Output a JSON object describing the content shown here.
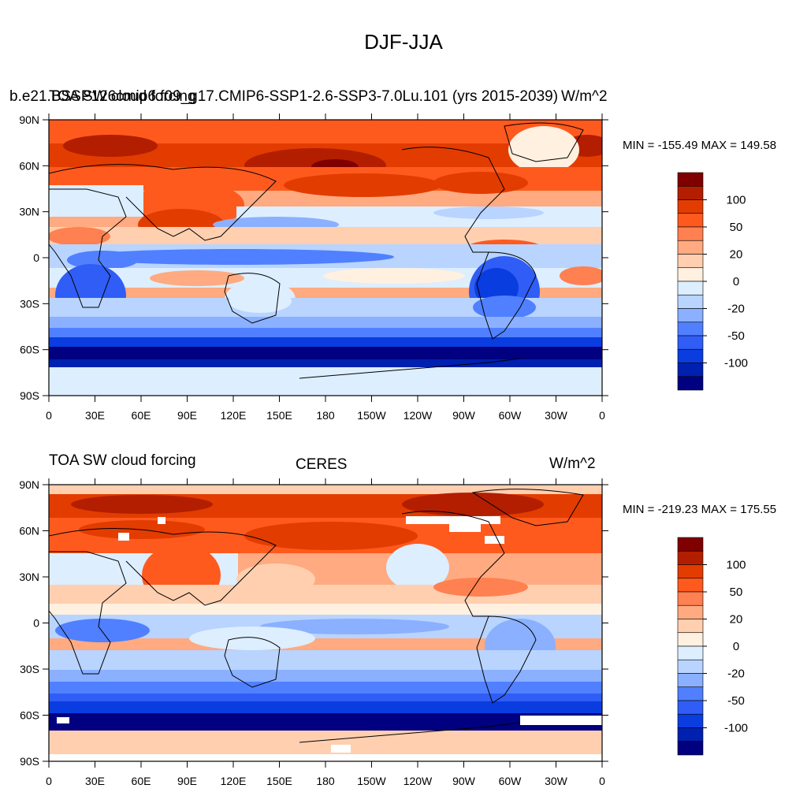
{
  "title": "DJF-JJA",
  "panels": [
    {
      "left_label": "b.e21.BSSP126cmip6.f09_g17.CMIP6-SSP1-2.6-SSP3-7.0Lu.101 (yrs 2015-2039)",
      "left_label_overlap": "TOA SW cloud forcing",
      "center_label": "",
      "right_label": "W/m^2",
      "stats": "MIN = -155.49 MAX = 149.58"
    },
    {
      "left_label": "TOA SW cloud forcing",
      "center_label": "CERES",
      "right_label": "W/m^2",
      "stats": "MIN = -219.23 MAX = 175.55"
    }
  ],
  "lat_labels": [
    "90N",
    "60N",
    "30N",
    "0",
    "30S",
    "60S",
    "90S"
  ],
  "lon_labels": [
    "0",
    "30E",
    "60E",
    "90E",
    "120E",
    "150E",
    "180",
    "150W",
    "120W",
    "90W",
    "60W",
    "30W",
    "0"
  ],
  "colorbar": {
    "labels": [
      "100",
      "50",
      "20",
      "0",
      "-20",
      "-50",
      "-100"
    ],
    "colors": [
      "#800000",
      "#b31e00",
      "#e33c00",
      "#ff5a1e",
      "#ff8050",
      "#ffaa80",
      "#ffcfb0",
      "#fff0e0",
      "#ddeeff",
      "#b8d4ff",
      "#8ab0ff",
      "#5080ff",
      "#2f5df5",
      "#0a3de0",
      "#0020b0",
      "#000080"
    ]
  },
  "legend_colors": {
    "strong_negative": "#000080",
    "negative": "#2f5df5",
    "weak_negative": "#b8d4ff",
    "near_zero_neg": "#ddeeff",
    "near_zero_pos": "#fff0e0",
    "weak_positive": "#ffcfb0",
    "positive": "#ff5a1e",
    "strong_positive": "#b31e00",
    "missing": "#ffffff"
  }
}
